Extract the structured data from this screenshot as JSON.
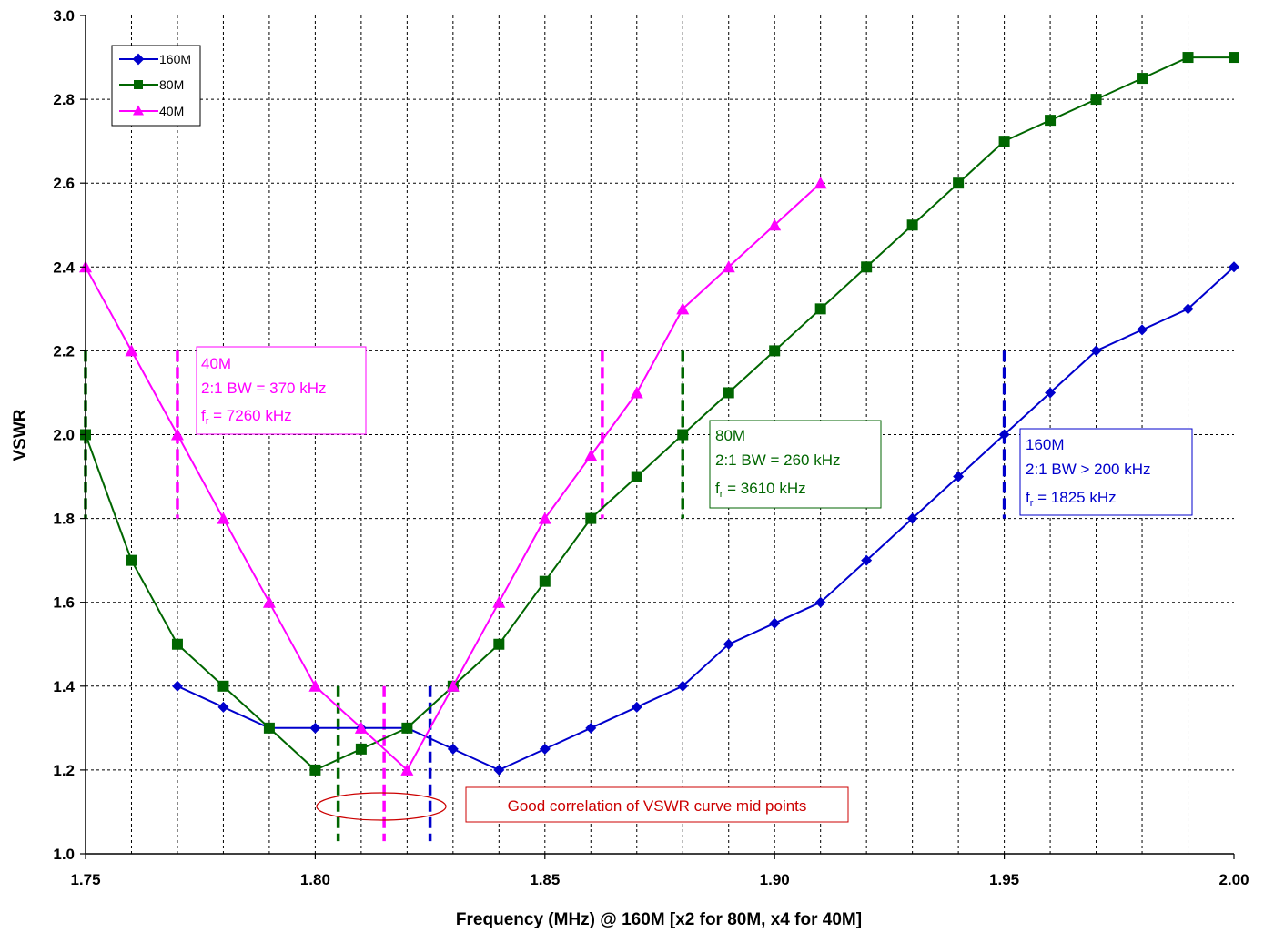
{
  "chart_data": {
    "type": "line",
    "xlabel": "Frequency (MHz) @ 160M [x2 for 80M, x4 for 40M]",
    "ylabel": "VSWR",
    "xlim": [
      1.75,
      2.0
    ],
    "ylim": [
      1.0,
      3.0
    ],
    "xticks": [
      "1.75",
      "1.80",
      "1.85",
      "1.90",
      "1.95",
      "2.00"
    ],
    "yticks": [
      "1.0",
      "1.2",
      "1.4",
      "1.6",
      "1.8",
      "2.0",
      "2.2",
      "2.4",
      "2.6",
      "2.8",
      "3.0"
    ],
    "grid": true,
    "legend_position": "top-left",
    "series": [
      {
        "name": "160M",
        "color": "#0000CC",
        "marker": "diamond",
        "x": [
          1.77,
          1.78,
          1.79,
          1.8,
          1.81,
          1.82,
          1.83,
          1.84,
          1.85,
          1.86,
          1.87,
          1.88,
          1.89,
          1.9,
          1.91,
          1.92,
          1.93,
          1.94,
          1.95,
          1.96,
          1.97,
          1.98,
          1.99,
          2.0
        ],
        "values": [
          1.4,
          1.35,
          1.3,
          1.3,
          1.3,
          1.3,
          1.25,
          1.2,
          1.25,
          1.3,
          1.35,
          1.4,
          1.5,
          1.55,
          1.6,
          1.7,
          1.8,
          1.9,
          2.0,
          2.1,
          2.2,
          2.25,
          2.3,
          2.4
        ]
      },
      {
        "name": "80M",
        "color": "#006600",
        "marker": "square",
        "x": [
          1.75,
          1.76,
          1.77,
          1.78,
          1.79,
          1.8,
          1.81,
          1.82,
          1.83,
          1.84,
          1.85,
          1.86,
          1.87,
          1.88,
          1.89,
          1.9,
          1.91,
          1.92,
          1.93,
          1.94,
          1.95,
          1.96,
          1.97,
          1.98,
          1.99,
          2.0
        ],
        "values": [
          2.0,
          1.7,
          1.5,
          1.4,
          1.3,
          1.2,
          1.25,
          1.3,
          1.4,
          1.5,
          1.65,
          1.8,
          1.9,
          2.0,
          2.1,
          2.2,
          2.3,
          2.4,
          2.5,
          2.6,
          2.7,
          2.75,
          2.8,
          2.85,
          2.9,
          2.9
        ]
      },
      {
        "name": "40M",
        "color": "#FF00FF",
        "marker": "triangle",
        "x": [
          1.75,
          1.76,
          1.77,
          1.78,
          1.79,
          1.8,
          1.81,
          1.82,
          1.83,
          1.84,
          1.85,
          1.86,
          1.87,
          1.88,
          1.89,
          1.9,
          1.91
        ],
        "values": [
          2.4,
          2.2,
          2.0,
          1.8,
          1.6,
          1.4,
          1.3,
          1.2,
          1.4,
          1.6,
          1.8,
          1.95,
          2.1,
          2.3,
          2.4,
          2.5,
          2.6
        ]
      }
    ],
    "bandwidth_markers": [
      {
        "series": "40M",
        "color": "#FF00FF",
        "x": 1.77,
        "y_range": [
          1.8,
          2.2
        ]
      },
      {
        "series": "40M",
        "color": "#FF00FF",
        "x": 1.8625,
        "y_range": [
          1.8,
          2.2
        ]
      },
      {
        "series": "80M",
        "color": "#006600",
        "x": 1.75,
        "y_range": [
          1.8,
          2.2
        ]
      },
      {
        "series": "80M",
        "color": "#006600",
        "x": 1.88,
        "y_range": [
          1.8,
          2.2
        ]
      },
      {
        "series": "160M",
        "color": "#0000CC",
        "x": 1.95,
        "y_range": [
          1.8,
          2.2
        ]
      },
      {
        "series": "80M",
        "color": "#006600",
        "x": 1.805,
        "y_range": [
          1.03,
          1.4
        ]
      },
      {
        "series": "40M",
        "color": "#FF00FF",
        "x": 1.815,
        "y_range": [
          1.03,
          1.4
        ]
      },
      {
        "series": "160M",
        "color": "#0000CC",
        "x": 1.825,
        "y_range": [
          1.03,
          1.4
        ]
      }
    ],
    "annotations": [
      {
        "id": "40m",
        "color": "#FF00FF",
        "lines": [
          "40M",
          "2:1 BW = 370 kHz"
        ],
        "fr_prefix": "f",
        "fr_sub": "r",
        "fr_value": " = 7260 kHz"
      },
      {
        "id": "80m",
        "color": "#006600",
        "lines": [
          "80M",
          "2:1 BW = 260 kHz"
        ],
        "fr_prefix": "f",
        "fr_sub": "r",
        "fr_value": " = 3610 kHz"
      },
      {
        "id": "160m",
        "color": "#0000CC",
        "lines": [
          "160M",
          "2:1 BW > 200 kHz"
        ],
        "fr_prefix": "f",
        "fr_sub": "r",
        "fr_value": " = 1825 kHz"
      }
    ],
    "callout": {
      "text": "Good correlation of VSWR curve mid points",
      "color": "#CC0000"
    }
  }
}
